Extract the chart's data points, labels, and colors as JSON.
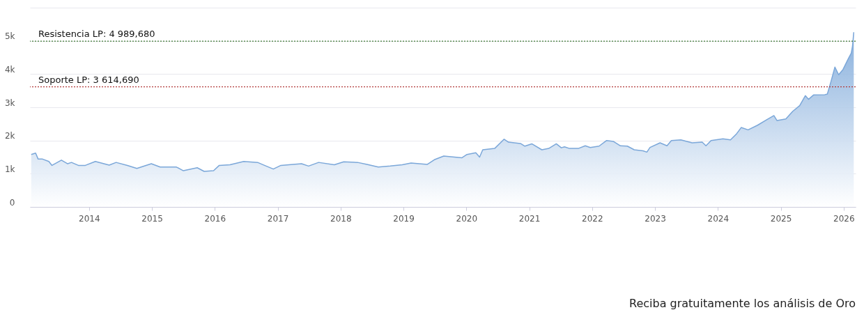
{
  "chart_data": {
    "type": "area",
    "x": [
      2013.08,
      2013.15,
      2013.19,
      2013.26,
      2013.36,
      2013.41,
      2013.56,
      2013.66,
      2013.72,
      2013.83,
      2013.94,
      2014.1,
      2014.32,
      2014.43,
      2014.61,
      2014.76,
      2014.99,
      2015.13,
      2015.39,
      2015.5,
      2015.72,
      2015.83,
      2015.98,
      2016.07,
      2016.24,
      2016.46,
      2016.68,
      2016.79,
      2016.93,
      2017.05,
      2017.24,
      2017.38,
      2017.49,
      2017.65,
      2017.9,
      2018.05,
      2018.27,
      2018.42,
      2018.6,
      2018.79,
      2018.98,
      2019.12,
      2019.38,
      2019.49,
      2019.64,
      2019.93,
      2020.01,
      2020.15,
      2020.21,
      2020.26,
      2020.45,
      2020.6,
      2020.67,
      2020.86,
      2020.93,
      2021.04,
      2021.2,
      2021.31,
      2021.43,
      2021.51,
      2021.56,
      2021.64,
      2021.78,
      2021.89,
      2021.97,
      2022.11,
      2022.23,
      2022.34,
      2022.45,
      2022.56,
      2022.67,
      2022.81,
      2022.87,
      2022.92,
      2023.08,
      2023.19,
      2023.26,
      2023.41,
      2023.59,
      2023.75,
      2023.81,
      2023.89,
      2024.08,
      2024.2,
      2024.3,
      2024.37,
      2024.48,
      2024.63,
      2024.78,
      2024.89,
      2024.94,
      2025.08,
      2025.19,
      2025.3,
      2025.39,
      2025.44,
      2025.52,
      2025.7,
      2025.74,
      2025.8,
      2025.86,
      2025.92,
      2025.99,
      2026.07,
      2026.12,
      2026.14,
      2026.16
    ],
    "series": [
      {
        "color": "#7ba7d9",
        "values": [
          1580,
          1620,
          1440,
          1440,
          1370,
          1250,
          1410,
          1300,
          1340,
          1250,
          1250,
          1370,
          1260,
          1340,
          1250,
          1160,
          1300,
          1200,
          1200,
          1090,
          1180,
          1070,
          1090,
          1250,
          1270,
          1370,
          1340,
          1250,
          1140,
          1250,
          1280,
          1300,
          1230,
          1340,
          1270,
          1360,
          1340,
          1280,
          1200,
          1230,
          1270,
          1320,
          1280,
          1420,
          1530,
          1480,
          1580,
          1630,
          1500,
          1720,
          1760,
          2040,
          1950,
          1910,
          1830,
          1900,
          1720,
          1760,
          1900,
          1780,
          1810,
          1760,
          1760,
          1840,
          1790,
          1830,
          2000,
          1970,
          1840,
          1830,
          1720,
          1690,
          1650,
          1790,
          1930,
          1840,
          2000,
          2020,
          1930,
          1950,
          1840,
          2000,
          2050,
          2020,
          2210,
          2390,
          2320,
          2460,
          2630,
          2750,
          2600,
          2650,
          2880,
          3050,
          3350,
          3240,
          3370,
          3380,
          3400,
          3790,
          4210,
          3980,
          4140,
          4450,
          4630,
          4840,
          5260
        ]
      }
    ],
    "xlim": [
      2013.06,
      2026.19
    ],
    "xticks": [
      2014,
      2015,
      2016,
      2017,
      2018,
      2019,
      2020,
      2021,
      2022,
      2023,
      2024,
      2025,
      2026
    ],
    "ylim": [
      0,
      6000
    ],
    "yticks": [
      0,
      {
        "value": 1000,
        "label": "1k"
      },
      {
        "value": 2000,
        "label": "2k"
      },
      {
        "value": 3000,
        "label": "3k"
      },
      {
        "value": 4000,
        "label": "4k"
      },
      {
        "value": 5000,
        "label": "5k"
      },
      {
        "value": 6000,
        "label": null
      }
    ],
    "grid": "y",
    "ref_lines": [
      {
        "axis": "y",
        "value": 4989.68,
        "label": "Resistencia LP: 4 989,680",
        "color": "#3f7a35",
        "line_style": "dotted"
      },
      {
        "axis": "y",
        "value": 3614.69,
        "label": "Soporte LP: 3 614,690",
        "color": "#b23a3a",
        "line_style": "dotted"
      }
    ],
    "annotations": [
      "Reciba gratuitamente los análisis de Oro"
    ]
  }
}
